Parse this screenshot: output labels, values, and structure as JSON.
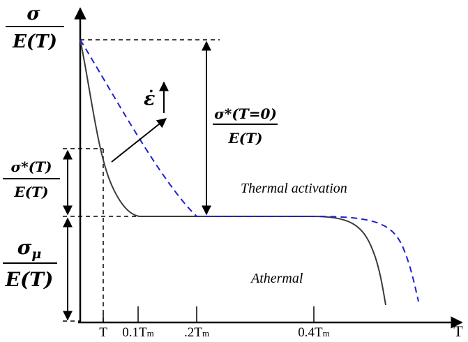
{
  "axes": {
    "y_label_num": "σ",
    "y_label_den": "E(T)",
    "x_label": "T"
  },
  "ticks": {
    "t": "T",
    "t01": "0.1T",
    "t02": ".2T",
    "t04": "0.4T",
    "sub": "m"
  },
  "labels": {
    "sigma_star_num": "σ*(T)",
    "sigma_star_den": "E(T)",
    "sigma_mu_num": "σ",
    "sigma_mu_sub": "μ",
    "sigma_mu_den": "E(T)",
    "sigma0_num": "σ*(T=0)",
    "sigma0_den": "E(T)",
    "strain_rate": "ε̇",
    "thermal_activation": "Thermal activation",
    "athermal": "Athermal"
  },
  "colors": {
    "solid_curve": "#3a3a3a",
    "dashed_curve": "#1f1fd6",
    "axis": "#000000"
  }
}
